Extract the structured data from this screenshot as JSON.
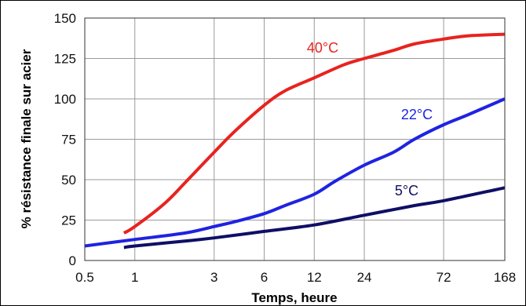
{
  "chart_data": {
    "type": "line",
    "xlabel": "Temps, heure",
    "ylabel": "% résistance finale sur acier",
    "xscale": "log",
    "xlim": [
      0.5,
      168
    ],
    "ylim": [
      0,
      150
    ],
    "grid": true,
    "x_ticks": [
      0.5,
      1,
      3,
      6,
      12,
      24,
      72,
      168
    ],
    "x_tick_labels": [
      "0.5",
      "1",
      "3",
      "6",
      "12",
      "24",
      "72",
      "168"
    ],
    "y_ticks": [
      0,
      25,
      50,
      75,
      100,
      125,
      150
    ],
    "y_tick_labels": [
      "0",
      "25",
      "50",
      "75",
      "100",
      "125",
      "150"
    ],
    "series": [
      {
        "name": "40°C",
        "color": "#e8231f",
        "points": [
          [
            0.86,
            17
          ],
          [
            1,
            21
          ],
          [
            1.5,
            35
          ],
          [
            2,
            48
          ],
          [
            3,
            67
          ],
          [
            4,
            80
          ],
          [
            6,
            96
          ],
          [
            8,
            105
          ],
          [
            12,
            113
          ],
          [
            18,
            121
          ],
          [
            24,
            125
          ],
          [
            36,
            130
          ],
          [
            48,
            134
          ],
          [
            72,
            137
          ],
          [
            100,
            139
          ],
          [
            168,
            140
          ]
        ]
      },
      {
        "name": "22°C",
        "color": "#1f23e0",
        "points": [
          [
            0.5,
            9
          ],
          [
            1,
            13
          ],
          [
            2,
            17
          ],
          [
            3,
            21
          ],
          [
            4,
            24
          ],
          [
            6,
            29
          ],
          [
            8,
            34
          ],
          [
            12,
            41
          ],
          [
            16,
            49
          ],
          [
            24,
            59
          ],
          [
            36,
            67
          ],
          [
            48,
            75
          ],
          [
            72,
            84
          ],
          [
            100,
            90
          ],
          [
            168,
            100
          ]
        ]
      },
      {
        "name": "5°C",
        "color": "#0f0f66",
        "points": [
          [
            0.86,
            8
          ],
          [
            1,
            9
          ],
          [
            2,
            12
          ],
          [
            3,
            14
          ],
          [
            6,
            18
          ],
          [
            12,
            22
          ],
          [
            24,
            28
          ],
          [
            48,
            34
          ],
          [
            72,
            37
          ],
          [
            168,
            45
          ]
        ]
      }
    ]
  }
}
